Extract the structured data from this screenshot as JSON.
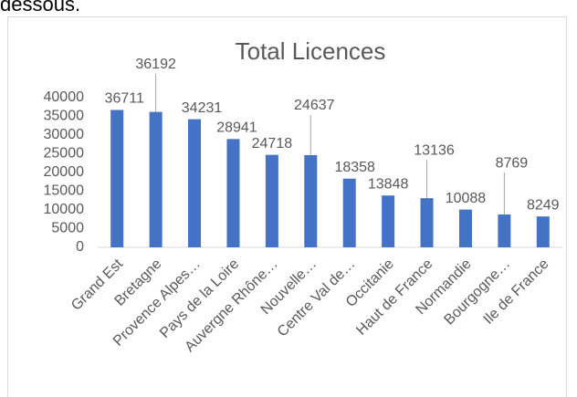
{
  "page_text": "dessous.",
  "chart_data": {
    "type": "bar",
    "title": "Total Licences",
    "categories": [
      "Grand Est",
      "Bretagne",
      "Provence Alpes…",
      "Pays de la Loire",
      "Auvergne Rhône…",
      "Nouvelle…",
      "Centre Val de…",
      "Occitanie",
      "Haut de France",
      "Normandie",
      "Bourgogne…",
      "Ile de France"
    ],
    "values": [
      36711,
      36192,
      34231,
      28941,
      24718,
      24637,
      18358,
      13848,
      13136,
      10088,
      8769,
      8249
    ],
    "color": "#4472c4",
    "ylim": [
      0,
      40000
    ],
    "yticks": [
      0,
      5000,
      10000,
      15000,
      20000,
      25000,
      30000,
      35000,
      40000
    ],
    "grid": false,
    "data_labels": true
  }
}
